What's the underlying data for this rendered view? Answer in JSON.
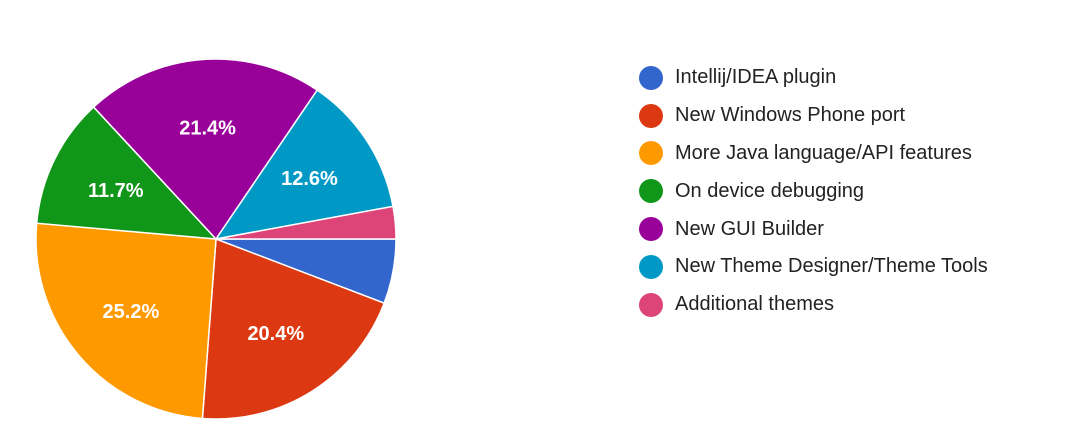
{
  "chart_data": {
    "type": "pie",
    "start": "3 o'clock",
    "direction": "clockwise",
    "legend_position": "right",
    "slices": [
      {
        "name": "Intellij/IDEA plugin",
        "value": 5.8,
        "label": "",
        "color": "#3366cc"
      },
      {
        "name": "New Windows Phone port",
        "value": 20.4,
        "label": "20.4%",
        "color": "#dc3912"
      },
      {
        "name": "More Java language/API features",
        "value": 25.2,
        "label": "25.2%",
        "color": "#ff9900"
      },
      {
        "name": "On device debugging",
        "value": 11.7,
        "label": "11.7%",
        "color": "#109618"
      },
      {
        "name": "New GUI Builder",
        "value": 21.4,
        "label": "21.4%",
        "color": "#990099"
      },
      {
        "name": "New Theme Designer/Theme Tools",
        "value": 12.6,
        "label": "12.6%",
        "color": "#0099c6"
      },
      {
        "name": "Additional themes",
        "value": 2.9,
        "label": "",
        "color": "#dd4477"
      }
    ]
  }
}
